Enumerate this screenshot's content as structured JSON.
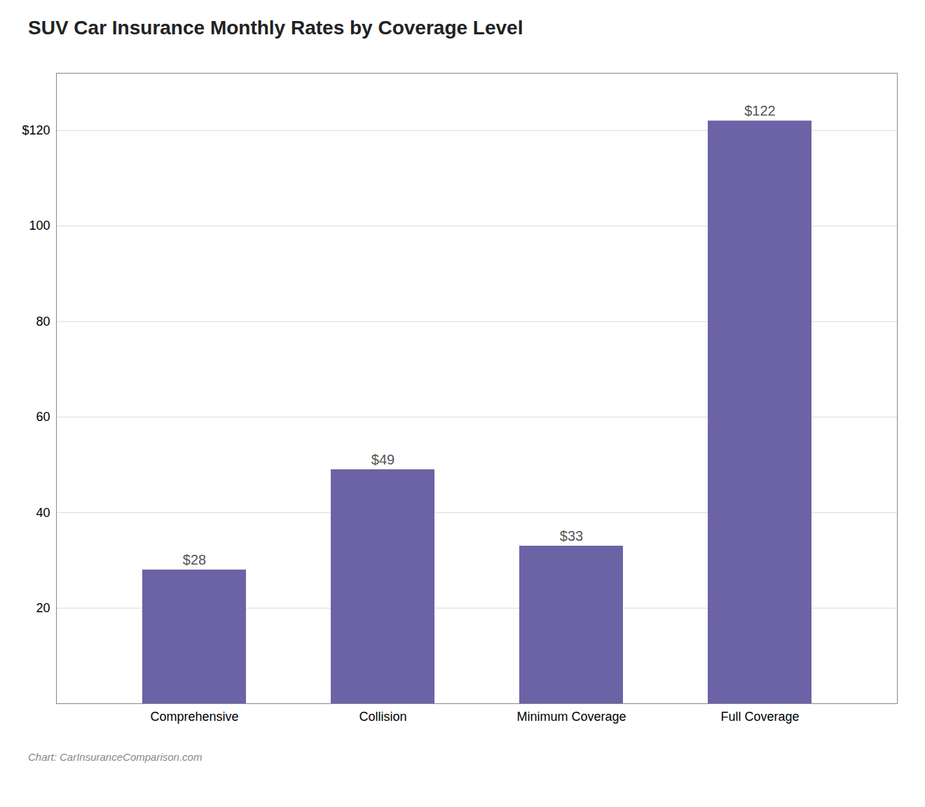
{
  "chart_data": {
    "type": "bar",
    "title": "SUV Car Insurance Monthly Rates by Coverage Level",
    "categories": [
      "Comprehensive",
      "Collision",
      "Minimum Coverage",
      "Full Coverage"
    ],
    "values": [
      28,
      49,
      33,
      122
    ],
    "value_labels": [
      "$28",
      "$49",
      "$33",
      "$122"
    ],
    "data_labels": true,
    "color": "#6B63A6",
    "ylim": [
      0,
      132
    ],
    "yticks": [
      20,
      40,
      60,
      80,
      100,
      {
        "value": 120,
        "label": "$120"
      }
    ],
    "grid": true,
    "caption": "Chart: CarInsuranceComparison.com"
  }
}
